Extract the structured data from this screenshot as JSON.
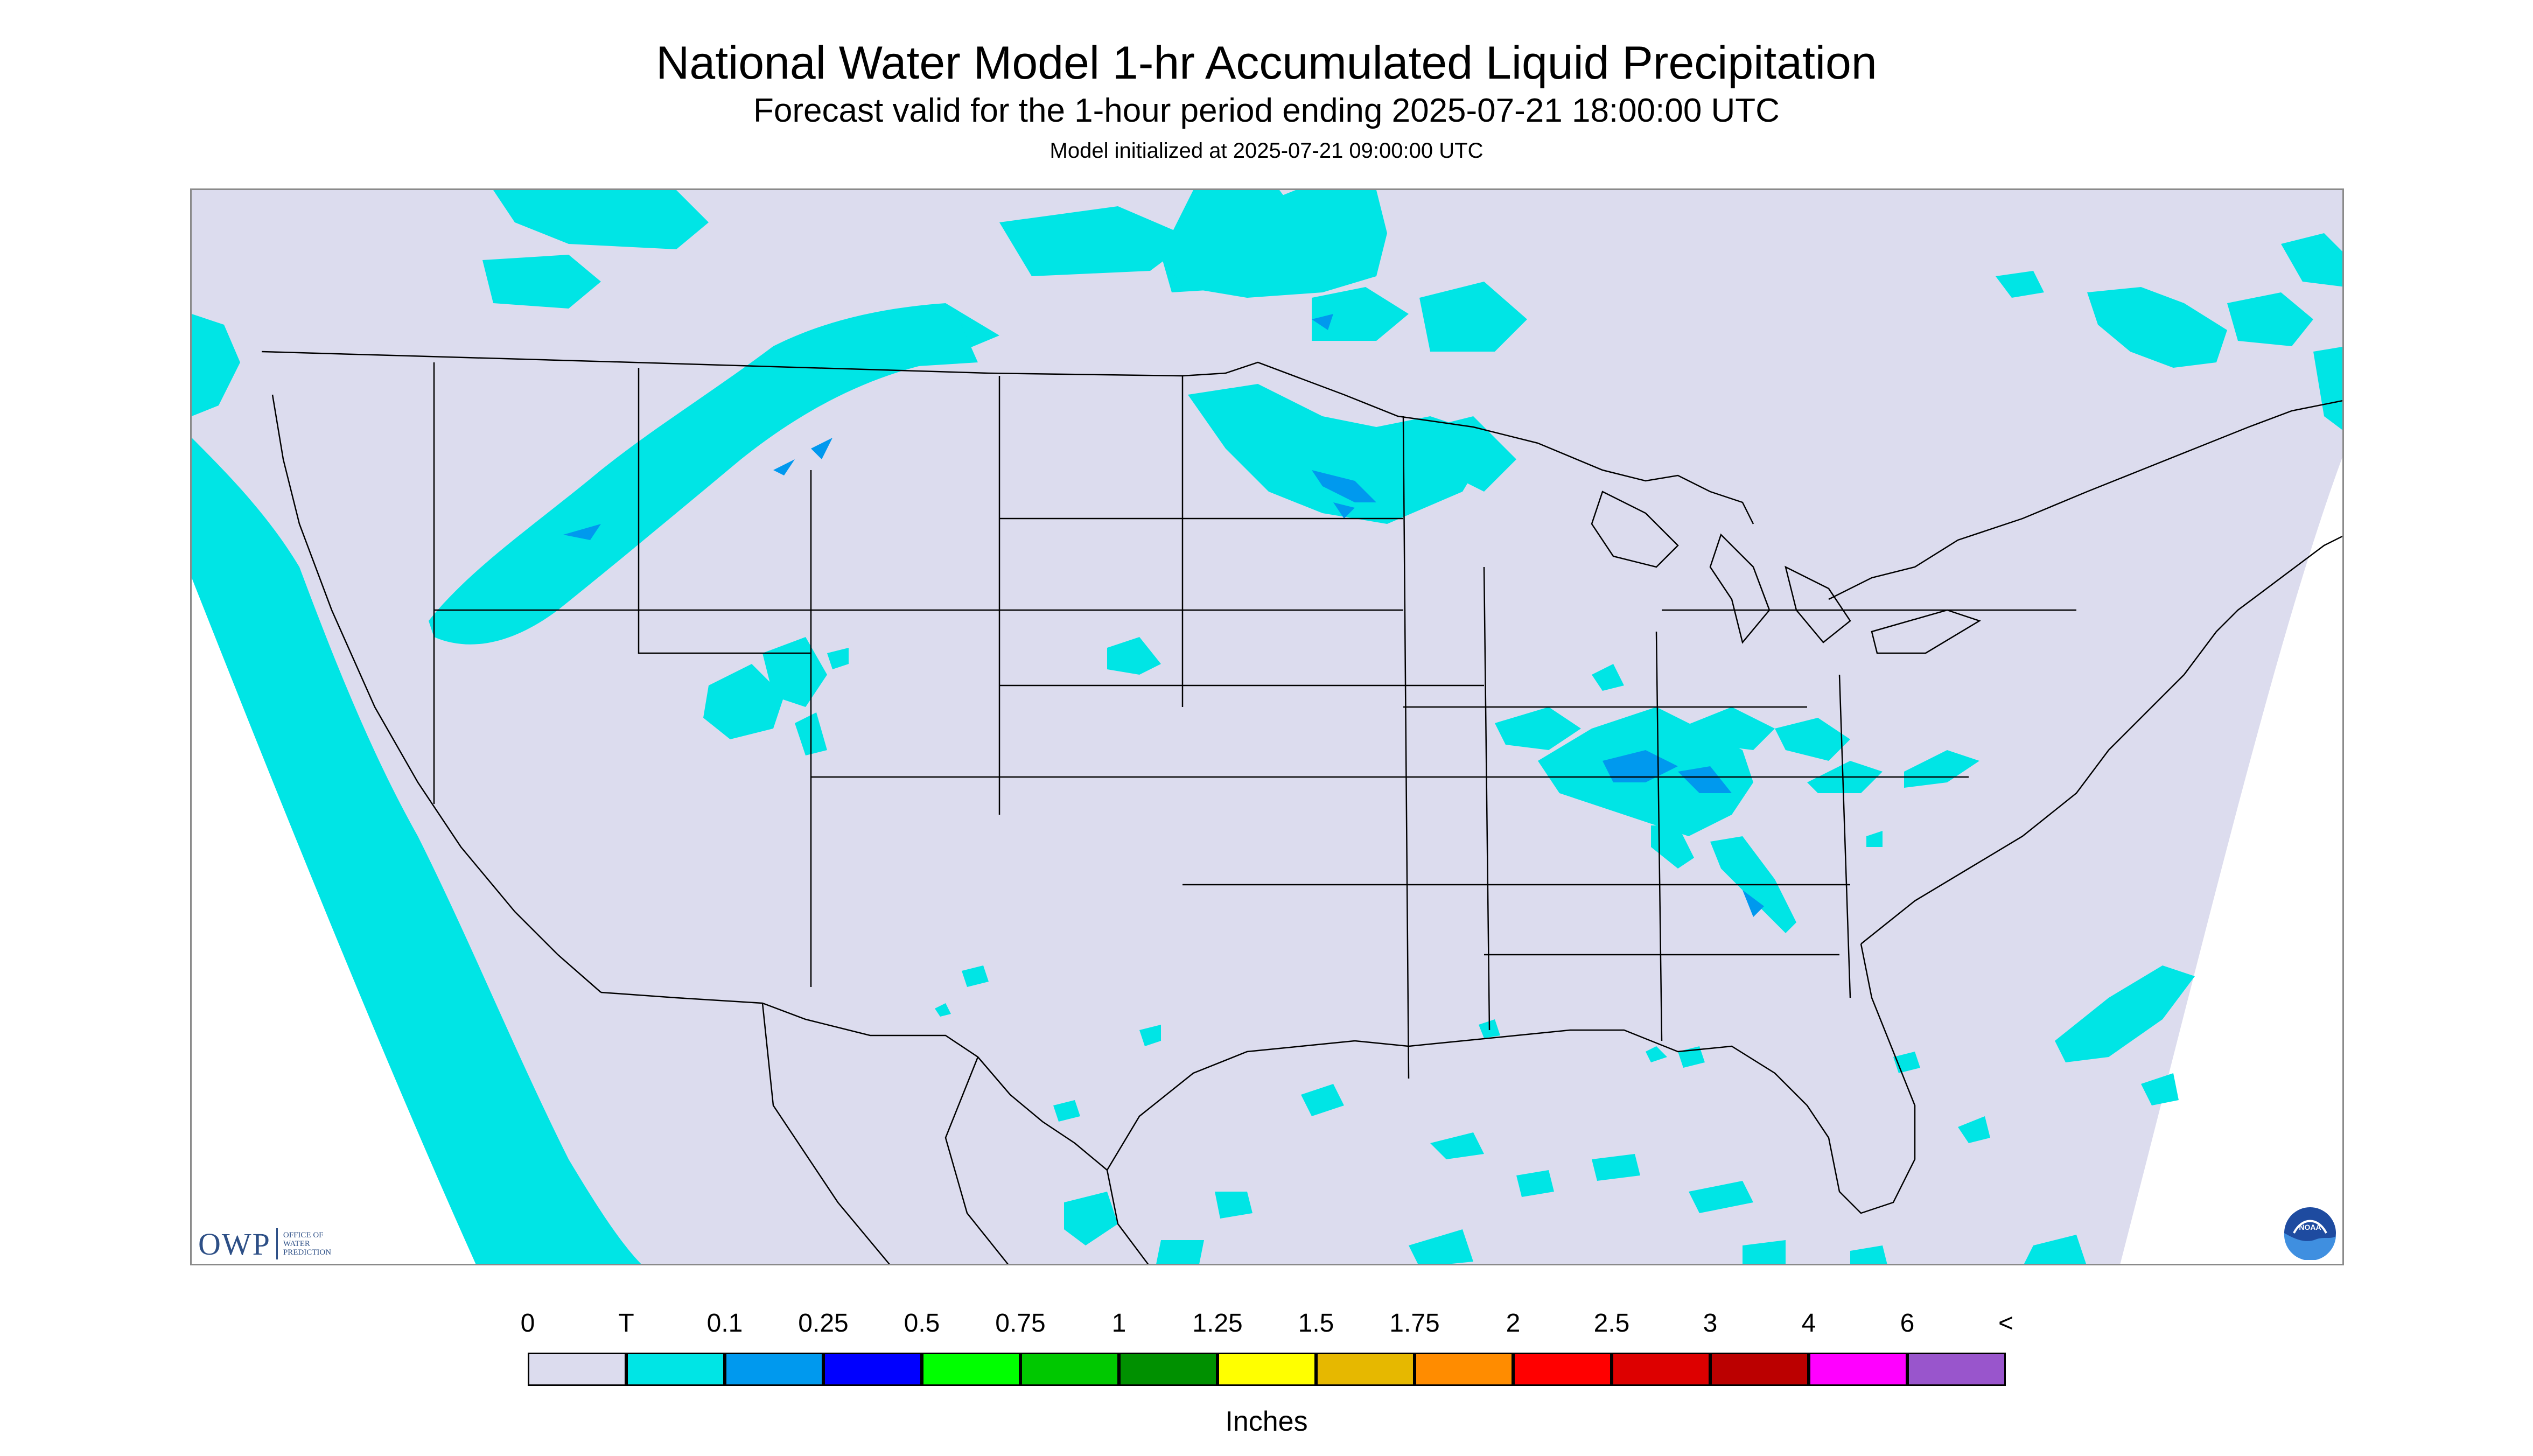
{
  "header": {
    "title": "National Water Model 1-hr Accumulated Liquid Precipitation",
    "subtitle": "Forecast valid for the 1-hour period ending 2025-07-21 18:00:00 UTC",
    "init": "Model initialized at 2025-07-21 09:00:00 UTC"
  },
  "map": {
    "background_color": "#dcdcee",
    "outside_color": "#ffffff",
    "boundary_color": "#000000",
    "precip_light_color": "#00e5e5",
    "precip_mid_color": "#0099ee",
    "region": "Continental United States"
  },
  "logos": {
    "owp_mark": "OWP",
    "owp_text": "OFFICE OF WATER PREDICTION",
    "noaa_text": "NOAA",
    "owp_icon": "owp-logo-icon",
    "noaa_icon": "noaa-logo-icon"
  },
  "legend": {
    "labels": [
      "0",
      "T",
      "0.1",
      "0.25",
      "0.5",
      "0.75",
      "1",
      "1.25",
      "1.5",
      "1.75",
      "2",
      "2.5",
      "3",
      "4",
      "6",
      "<"
    ],
    "colors": [
      "#dcdcee",
      "#00e5e5",
      "#0099ee",
      "#0000ff",
      "#00ff00",
      "#00c800",
      "#009000",
      "#ffff00",
      "#e6b800",
      "#ff8c00",
      "#ff0000",
      "#dd0000",
      "#bb0000",
      "#ff00ff",
      "#9955cc"
    ],
    "units": "Inches"
  }
}
